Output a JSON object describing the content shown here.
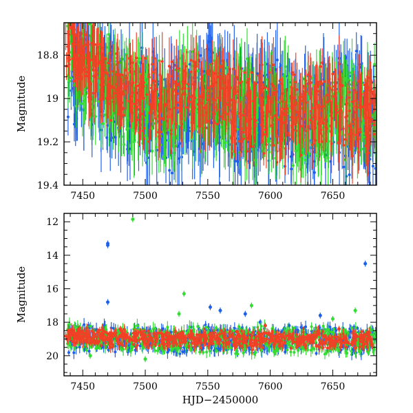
{
  "chart_data": [
    {
      "type": "scatter",
      "title": "",
      "xlabel": "",
      "ylabel": "Magnitude",
      "xlim": [
        7435,
        7685
      ],
      "ylim": [
        18.65,
        19.4
      ],
      "y_inverted": true,
      "grid": false,
      "error_bars": true,
      "xticks": [
        7450,
        7500,
        7550,
        7600,
        7650
      ],
      "yticks": [
        18.8,
        19,
        19.2,
        19.4
      ],
      "ytick_labels": [
        "18.8",
        "19",
        "19.2",
        "19.4"
      ],
      "series": [
        {
          "color": "#2060e8",
          "spread": 0.28,
          "err": 0.14,
          "x": [
            7442,
            7448,
            7455,
            7463,
            7470,
            7478,
            7486,
            7495,
            7503,
            7512,
            7520,
            7528,
            7536,
            7543,
            7550,
            7556,
            7562,
            7568,
            7574,
            7580,
            7586,
            7592,
            7598,
            7605,
            7612,
            7620,
            7628,
            7636,
            7644,
            7652,
            7660,
            7668,
            7676,
            7681
          ],
          "y": [
            18.95,
            18.85,
            18.9,
            18.95,
            18.98,
            19.0,
            19.05,
            19.02,
            19.05,
            19.05,
            19.1,
            19.1,
            19.05,
            19.0,
            18.95,
            19.0,
            19.0,
            19.05,
            19.05,
            19.1,
            19.1,
            19.05,
            19.05,
            19.05,
            19.08,
            19.1,
            19.05,
            19.1,
            19.05,
            19.05,
            19.1,
            19.05,
            19.05,
            19.1
          ]
        },
        {
          "color": "#33dd33",
          "spread": 0.25,
          "err": 0.12,
          "x": [
            7441,
            7447,
            7453,
            7460,
            7468,
            7476,
            7484,
            7492,
            7500,
            7508,
            7516,
            7524,
            7532,
            7540,
            7548,
            7556,
            7564,
            7572,
            7580,
            7588,
            7596,
            7604,
            7612,
            7620,
            7628,
            7636,
            7644,
            7652,
            7660,
            7668,
            7676,
            7682
          ],
          "y": [
            18.8,
            18.85,
            18.9,
            18.9,
            18.92,
            18.98,
            19.0,
            19.0,
            19.02,
            19.05,
            19.08,
            19.05,
            19.0,
            19.0,
            19.0,
            19.0,
            19.02,
            19.05,
            19.05,
            19.1,
            19.08,
            19.05,
            19.05,
            19.1,
            19.1,
            19.05,
            19.05,
            19.05,
            19.08,
            19.05,
            19.1,
            19.05
          ]
        },
        {
          "color": "#f04026",
          "spread": 0.22,
          "err": 0.1,
          "x": [
            7440,
            7445,
            7450,
            7456,
            7462,
            7468,
            7475,
            7482,
            7490,
            7498,
            7506,
            7514,
            7522,
            7530,
            7538,
            7546,
            7554,
            7562,
            7570,
            7578,
            7586,
            7594,
            7602,
            7610,
            7618,
            7626,
            7634,
            7642,
            7650,
            7658,
            7666,
            7674,
            7680
          ],
          "y": [
            18.75,
            18.78,
            18.82,
            18.85,
            18.88,
            18.9,
            18.92,
            18.95,
            18.97,
            19.0,
            19.0,
            19.02,
            19.0,
            18.98,
            18.98,
            18.98,
            19.0,
            19.0,
            19.02,
            19.05,
            19.05,
            19.05,
            19.05,
            19.08,
            19.08,
            19.08,
            19.05,
            19.05,
            19.05,
            19.05,
            19.08,
            19.05,
            19.1
          ]
        }
      ]
    },
    {
      "type": "scatter",
      "title": "",
      "xlabel": "HJD−2450000",
      "ylabel": "Magnitude",
      "xlim": [
        7435,
        7685
      ],
      "ylim": [
        11.5,
        21.2
      ],
      "y_inverted": true,
      "grid": false,
      "error_bars": true,
      "xticks": [
        7450,
        7500,
        7550,
        7600,
        7650
      ],
      "yticks": [
        12,
        14,
        16,
        18,
        20
      ],
      "ytick_labels": [
        "12",
        "14",
        "16",
        "18",
        "20"
      ],
      "series": [
        {
          "color": "#2060e8",
          "spread": 0.9,
          "err": 0.3,
          "x": [
            7442,
            7448,
            7455,
            7463,
            7470,
            7478,
            7486,
            7495,
            7503,
            7512,
            7520,
            7528,
            7536,
            7543,
            7550,
            7556,
            7562,
            7568,
            7574,
            7580,
            7586,
            7592,
            7598,
            7605,
            7612,
            7620,
            7628,
            7636,
            7644,
            7652,
            7660,
            7668,
            7676,
            7681
          ],
          "y": [
            18.95,
            18.85,
            18.9,
            18.95,
            18.98,
            19.0,
            19.05,
            19.02,
            19.05,
            19.05,
            19.1,
            19.1,
            19.05,
            19.0,
            18.95,
            19.0,
            19.0,
            19.05,
            19.05,
            19.1,
            19.1,
            19.05,
            19.05,
            19.05,
            19.08,
            19.1,
            19.05,
            19.1,
            19.05,
            19.05,
            19.1,
            19.05,
            19.05,
            19.1
          ],
          "outliers_x": [
            7470,
            7470,
            7470,
            7676,
            7552,
            7560,
            7580,
            7592,
            7615,
            7640,
            7667
          ],
          "outliers_y": [
            13.4,
            13.3,
            16.8,
            14.5,
            17.1,
            17.3,
            17.5,
            18.0,
            18.2,
            17.6,
            18.3
          ]
        },
        {
          "color": "#33dd33",
          "spread": 0.9,
          "err": 0.3,
          "x": [
            7441,
            7447,
            7453,
            7460,
            7468,
            7476,
            7484,
            7492,
            7500,
            7508,
            7516,
            7524,
            7532,
            7540,
            7548,
            7556,
            7564,
            7572,
            7580,
            7588,
            7596,
            7604,
            7612,
            7620,
            7628,
            7636,
            7644,
            7652,
            7660,
            7668,
            7676,
            7682
          ],
          "y": [
            18.8,
            18.85,
            18.9,
            18.9,
            18.92,
            18.98,
            19.0,
            19.0,
            19.02,
            19.05,
            19.08,
            19.05,
            19.0,
            19.0,
            19.0,
            19.0,
            19.02,
            19.05,
            19.05,
            19.1,
            19.08,
            19.05,
            19.05,
            19.1,
            19.1,
            19.05,
            19.05,
            19.05,
            19.08,
            19.05,
            19.1,
            19.05
          ],
          "outliers_x": [
            7490,
            7531,
            7527,
            7585,
            7650,
            7668,
            7456,
            7500
          ],
          "outliers_y": [
            11.85,
            16.3,
            17.5,
            17.0,
            17.8,
            17.3,
            20.0,
            20.2
          ]
        },
        {
          "color": "#f04026",
          "spread": 0.6,
          "err": 0.25,
          "x": [
            7440,
            7445,
            7450,
            7456,
            7462,
            7468,
            7475,
            7482,
            7490,
            7498,
            7506,
            7514,
            7522,
            7530,
            7538,
            7546,
            7554,
            7562,
            7570,
            7578,
            7586,
            7594,
            7602,
            7610,
            7618,
            7626,
            7634,
            7642,
            7650,
            7658,
            7666,
            7674,
            7680
          ],
          "y": [
            18.75,
            18.78,
            18.82,
            18.85,
            18.88,
            18.9,
            18.92,
            18.95,
            18.97,
            19.0,
            19.0,
            19.02,
            19.0,
            18.98,
            18.98,
            18.98,
            19.0,
            19.0,
            19.02,
            19.05,
            19.05,
            19.05,
            19.05,
            19.08,
            19.08,
            19.08,
            19.05,
            19.05,
            19.05,
            19.05,
            19.08,
            19.05,
            19.1
          ],
          "outliers_x": [
            7596,
            7655,
            7480
          ],
          "outliers_y": [
            18.2,
            18.4,
            18.4
          ]
        }
      ]
    }
  ]
}
